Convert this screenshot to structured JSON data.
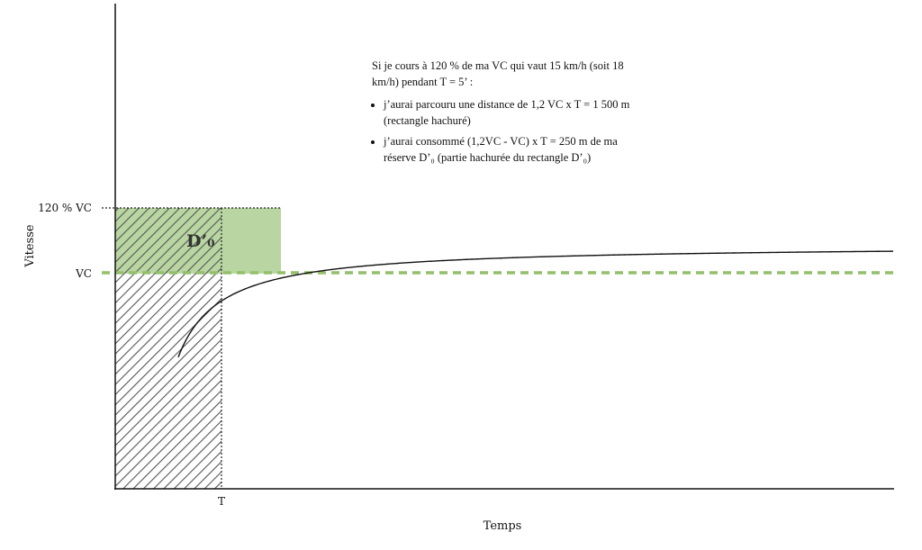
{
  "axes": {
    "y_label": "Vitesse",
    "x_label": "Temps"
  },
  "ticks": {
    "y_top": "120 % VC",
    "y_vc": "VC",
    "x_t": "T"
  },
  "area_label": "D’₀",
  "annotation": {
    "intro": "Si je cours à 120 % de ma VC qui vaut 15 km/h (soit 18 km/h) pendant T = 5’ :",
    "bullets": [
      "j’aurai parcouru une distance de 1,2 VC x T = 1 500 m (rectangle hachuré)",
      "j’aurai consommé (1,2VC - VC) x T = 250 m de ma réserve D’₀ (partie hachurée du rectangle D’₀)"
    ]
  },
  "colors": {
    "green_fill": "#b9d6a2",
    "green_line": "#94bf6c",
    "hatch": "#555555",
    "curve": "#111111"
  }
}
